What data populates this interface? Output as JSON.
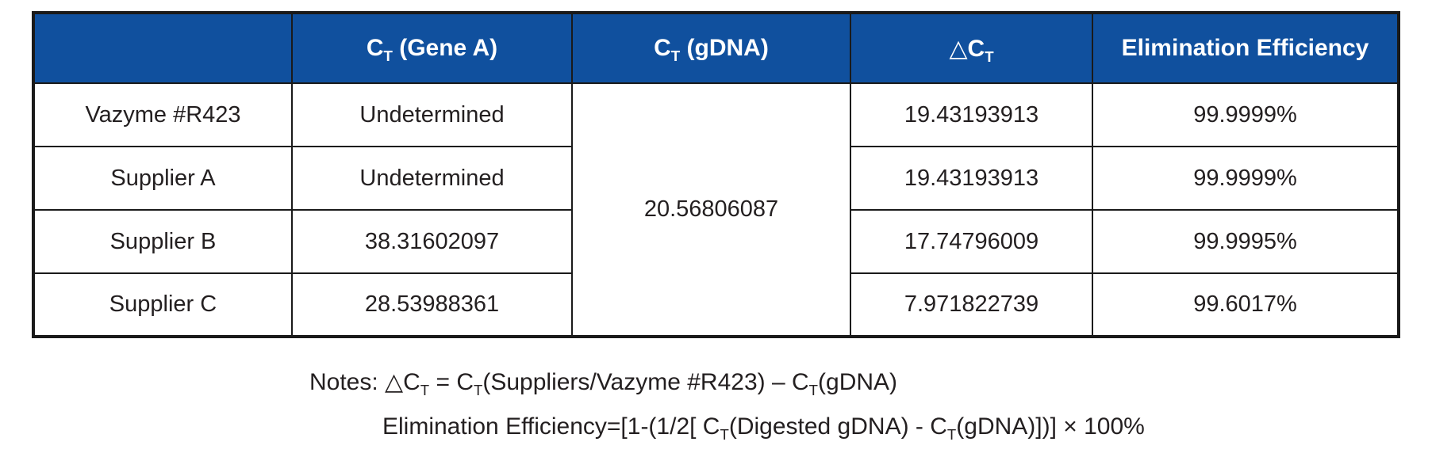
{
  "colors": {
    "header_bg": "#10509e",
    "header_text": "#ffffff",
    "body_text": "#231f20",
    "border": "#1a1a1a",
    "page_bg": "#ffffff"
  },
  "table": {
    "headers": {
      "row_label": "",
      "ct_gene_a": [
        {
          "t": "C"
        },
        {
          "t": "T",
          "sub": true
        },
        {
          "t": " (Gene A)"
        }
      ],
      "ct_gdna": [
        {
          "t": "C"
        },
        {
          "t": "T",
          "sub": true
        },
        {
          "t": " (gDNA)"
        }
      ],
      "delta_ct": [
        {
          "t": "△C"
        },
        {
          "t": "T",
          "sub": true
        }
      ],
      "elimination_efficiency": [
        {
          "t": "Elimination Efficiency"
        }
      ]
    },
    "gdna_merged_value": "20.56806087",
    "rows": [
      {
        "name": "Vazyme #R423",
        "ct_gene_a": "Undetermined",
        "delta_ct": "19.43193913",
        "elimination_efficiency": "99.9999%"
      },
      {
        "name": "Supplier A",
        "ct_gene_a": "Undetermined",
        "delta_ct": "19.43193913",
        "elimination_efficiency": "99.9999%"
      },
      {
        "name": "Supplier B",
        "ct_gene_a": "38.31602097",
        "delta_ct": "17.74796009",
        "elimination_efficiency": "99.9995%"
      },
      {
        "name": "Supplier C",
        "ct_gene_a": "28.53988361",
        "delta_ct": "7.971822739",
        "elimination_efficiency": "99.6017%"
      }
    ]
  },
  "notes": {
    "line1": [
      {
        "t": "Notes: △C"
      },
      {
        "t": "T",
        "sub": true
      },
      {
        "t": " = C"
      },
      {
        "t": "T",
        "sub": true
      },
      {
        "t": "(Suppliers/Vazyme #R423) – C"
      },
      {
        "t": "T",
        "sub": true
      },
      {
        "t": "(gDNA)"
      }
    ],
    "line2": [
      {
        "t": "Elimination Efficiency=[1-(1/2[ C"
      },
      {
        "t": "T",
        "sub": true
      },
      {
        "t": "(Digested gDNA) - C"
      },
      {
        "t": "T",
        "sub": true
      },
      {
        "t": "(gDNA)])] × 100%"
      }
    ]
  }
}
